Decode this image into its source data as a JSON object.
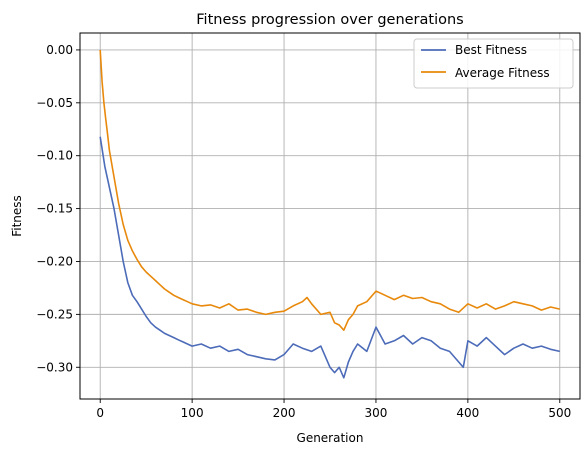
{
  "chart_data": {
    "type": "line",
    "title": "Fitness progression over generations",
    "xlabel": "Generation",
    "ylabel": "Fitness",
    "xlim": [
      -22,
      522
    ],
    "ylim": [
      -0.33,
      0.016
    ],
    "xticks": [
      0,
      100,
      200,
      300,
      400,
      500
    ],
    "xtick_labels": [
      "0",
      "100",
      "200",
      "300",
      "400",
      "500"
    ],
    "yticks": [
      0.0,
      -0.05,
      -0.1,
      -0.15,
      -0.2,
      -0.25,
      -0.3
    ],
    "ytick_labels": [
      "0.00",
      "−0.05",
      "−0.10",
      "−0.15",
      "−0.20",
      "−0.25",
      "−0.30"
    ],
    "grid": true,
    "legend_position": "top-right",
    "series": [
      {
        "name": "Best Fitness",
        "color": "#4c6bb8",
        "x": [
          0,
          5,
          10,
          15,
          20,
          25,
          30,
          35,
          40,
          45,
          50,
          55,
          60,
          65,
          70,
          75,
          80,
          85,
          90,
          95,
          100,
          110,
          120,
          130,
          140,
          150,
          160,
          170,
          180,
          190,
          200,
          210,
          220,
          230,
          240,
          250,
          255,
          260,
          265,
          270,
          275,
          280,
          290,
          300,
          310,
          320,
          330,
          340,
          350,
          360,
          370,
          380,
          390,
          395,
          400,
          410,
          420,
          430,
          440,
          450,
          460,
          470,
          480,
          490,
          500
        ],
        "values": [
          -0.082,
          -0.11,
          -0.13,
          -0.15,
          -0.175,
          -0.2,
          -0.22,
          -0.232,
          -0.238,
          -0.245,
          -0.252,
          -0.258,
          -0.262,
          -0.265,
          -0.268,
          -0.27,
          -0.272,
          -0.274,
          -0.276,
          -0.278,
          -0.28,
          -0.278,
          -0.282,
          -0.28,
          -0.285,
          -0.283,
          -0.288,
          -0.29,
          -0.292,
          -0.293,
          -0.288,
          -0.278,
          -0.282,
          -0.285,
          -0.28,
          -0.3,
          -0.305,
          -0.3,
          -0.31,
          -0.295,
          -0.285,
          -0.278,
          -0.285,
          -0.262,
          -0.278,
          -0.275,
          -0.27,
          -0.278,
          -0.272,
          -0.275,
          -0.282,
          -0.285,
          -0.295,
          -0.3,
          -0.275,
          -0.28,
          -0.272,
          -0.28,
          -0.288,
          -0.282,
          -0.278,
          -0.282,
          -0.28,
          -0.283,
          -0.285
        ]
      },
      {
        "name": "Average Fitness",
        "color": "#e8890c",
        "x": [
          0,
          2,
          4,
          6,
          8,
          10,
          15,
          20,
          25,
          30,
          35,
          40,
          45,
          50,
          55,
          60,
          65,
          70,
          75,
          80,
          85,
          90,
          95,
          100,
          110,
          120,
          130,
          140,
          150,
          160,
          170,
          180,
          190,
          200,
          210,
          220,
          225,
          230,
          240,
          250,
          255,
          260,
          265,
          270,
          275,
          280,
          290,
          300,
          305,
          310,
          320,
          330,
          340,
          350,
          360,
          370,
          380,
          390,
          400,
          410,
          420,
          430,
          440,
          450,
          460,
          470,
          480,
          490,
          500
        ],
        "values": [
          0.0,
          -0.03,
          -0.05,
          -0.065,
          -0.08,
          -0.095,
          -0.12,
          -0.145,
          -0.165,
          -0.18,
          -0.19,
          -0.198,
          -0.205,
          -0.21,
          -0.214,
          -0.218,
          -0.222,
          -0.226,
          -0.229,
          -0.232,
          -0.234,
          -0.236,
          -0.238,
          -0.24,
          -0.242,
          -0.241,
          -0.244,
          -0.24,
          -0.246,
          -0.245,
          -0.248,
          -0.25,
          -0.248,
          -0.247,
          -0.242,
          -0.238,
          -0.234,
          -0.24,
          -0.25,
          -0.248,
          -0.258,
          -0.26,
          -0.265,
          -0.255,
          -0.25,
          -0.242,
          -0.238,
          -0.228,
          -0.23,
          -0.232,
          -0.236,
          -0.232,
          -0.235,
          -0.234,
          -0.238,
          -0.24,
          -0.245,
          -0.248,
          -0.24,
          -0.244,
          -0.24,
          -0.245,
          -0.242,
          -0.238,
          -0.24,
          -0.242,
          -0.246,
          -0.243,
          -0.245
        ]
      }
    ]
  }
}
